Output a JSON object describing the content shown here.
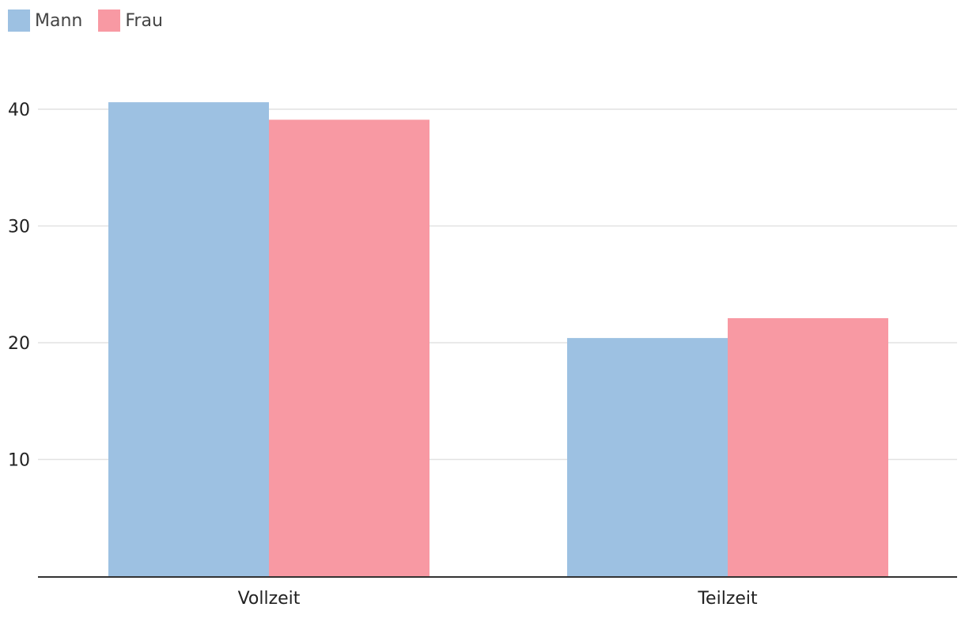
{
  "chart_data": {
    "type": "bar",
    "categories": [
      "Vollzeit",
      "Teilzeit"
    ],
    "series": [
      {
        "name": "Mann",
        "values": [
          40.6,
          20.4
        ],
        "color": "#9dc1e2"
      },
      {
        "name": "Frau",
        "values": [
          39.1,
          22.1
        ],
        "color": "#f899a3"
      }
    ],
    "yticks": [
      10,
      20,
      30,
      40
    ],
    "ylim": [
      0,
      40
    ],
    "grid": true,
    "legend_position": "top-left",
    "title": "",
    "xlabel": "",
    "ylabel": ""
  },
  "colors": {
    "grid": "#e2e2e2",
    "axis": "#333333",
    "tick_text": "#222222"
  }
}
